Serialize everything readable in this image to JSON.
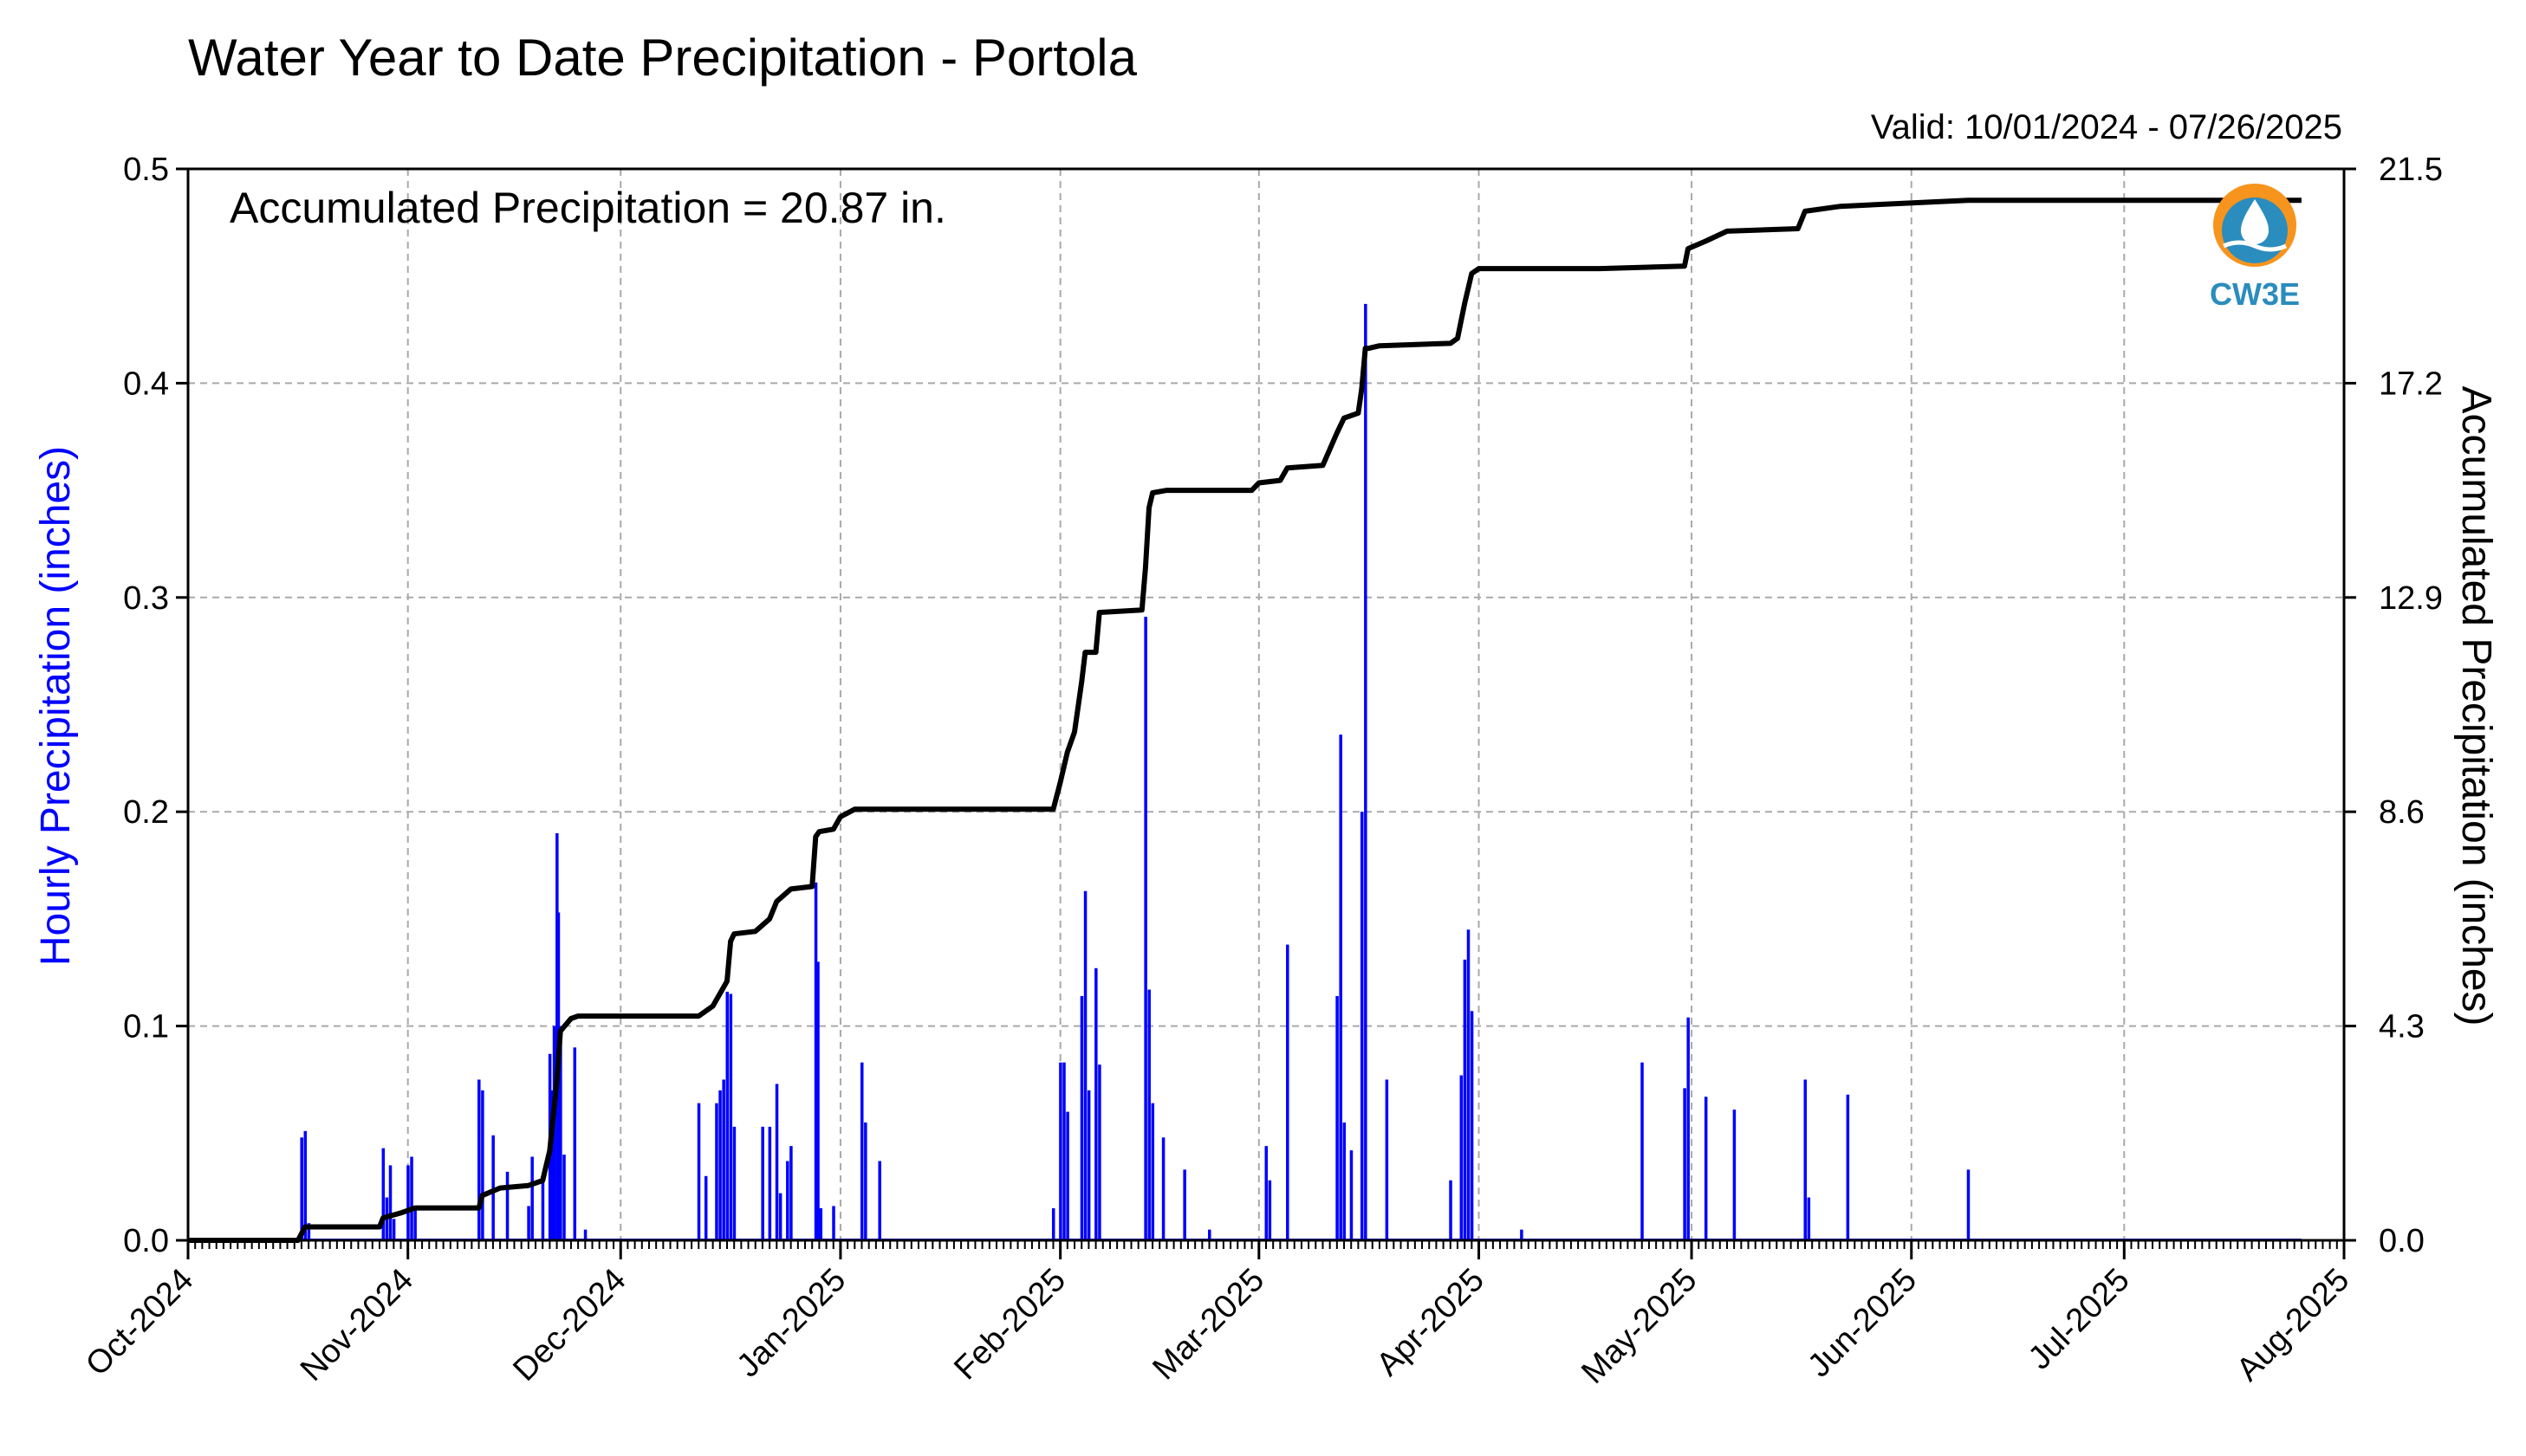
{
  "title": "Water Year to Date Precipitation - Portola",
  "valid_text": "Valid: 10/01/2024 - 07/26/2025",
  "annotation": "Accumulated Precipitation = 20.87 in.",
  "logo_text": "CW3E",
  "colors": {
    "hourly": "#0000ff",
    "accumulated": "#000000",
    "grid": "#a9a9a9",
    "logo_orange": "#f7941d",
    "logo_blue": "#2b8cbe"
  },
  "chart_data": {
    "type": "bar",
    "title": "Water Year to Date Precipitation - Portola",
    "ylabel": "Hourly Precipitation (inches)",
    "y2label": "Accumulated Precipitation (inches)",
    "ylim": [
      0,
      0.5
    ],
    "y2lim": [
      0,
      21.5
    ],
    "yticks": [
      "0.0",
      "0.1",
      "0.2",
      "0.3",
      "0.4",
      "0.5"
    ],
    "y2ticks": [
      "0.0",
      "4.3",
      "8.6",
      "12.9",
      "17.2",
      "21.5"
    ],
    "xlim": [
      "2024-10-01",
      "2025-08-01"
    ],
    "xticks": [
      "Oct-2024",
      "Nov-2024",
      "Dec-2024",
      "Jan-2025",
      "Feb-2025",
      "Mar-2025",
      "Apr-2025",
      "May-2025",
      "Jun-2025",
      "Jul-2025",
      "Aug-2025"
    ],
    "grid": true,
    "series": [
      {
        "name": "Hourly Precipitation (inches)",
        "type": "bar",
        "points": [
          [
            "2024-10-17",
            0.048
          ],
          [
            "2024-10-17.5",
            0.051
          ],
          [
            "2024-10-18",
            0.008
          ],
          [
            "2024-10-28.5",
            0.043
          ],
          [
            "2024-10-29",
            0.02
          ],
          [
            "2024-10-29.5",
            0.035
          ],
          [
            "2024-10-30",
            0.01
          ],
          [
            "2024-11-01",
            0.035
          ],
          [
            "2024-11-01.5",
            0.039
          ],
          [
            "2024-11-02",
            0.015
          ],
          [
            "2024-11-11",
            0.075
          ],
          [
            "2024-11-11.5",
            0.07
          ],
          [
            "2024-11-13",
            0.049
          ],
          [
            "2024-11-15",
            0.032
          ],
          [
            "2024-11-18",
            0.016
          ],
          [
            "2024-11-18.5",
            0.039
          ],
          [
            "2024-11-20",
            0.03
          ],
          [
            "2024-11-21",
            0.087
          ],
          [
            "2024-11-21.3",
            0.07
          ],
          [
            "2024-11-21.6",
            0.1
          ],
          [
            "2024-11-22",
            0.19
          ],
          [
            "2024-11-22.2",
            0.153
          ],
          [
            "2024-11-22.5",
            0.1
          ],
          [
            "2024-11-23",
            0.04
          ],
          [
            "2024-11-24.5",
            0.09
          ],
          [
            "2024-11-26",
            0.005
          ],
          [
            "2024-12-12",
            0.064
          ],
          [
            "2024-12-13",
            0.03
          ],
          [
            "2024-12-14.5",
            0.064
          ],
          [
            "2024-12-15",
            0.07
          ],
          [
            "2024-12-15.5",
            0.075
          ],
          [
            "2024-12-16",
            0.116
          ],
          [
            "2024-12-16.5",
            0.115
          ],
          [
            "2024-12-17",
            0.053
          ],
          [
            "2024-12-21",
            0.053
          ],
          [
            "2024-12-22",
            0.053
          ],
          [
            "2024-12-23",
            0.073
          ],
          [
            "2024-12-23.5",
            0.022
          ],
          [
            "2024-12-24.5",
            0.037
          ],
          [
            "2024-12-25",
            0.044
          ],
          [
            "2024-12-28.5",
            0.167
          ],
          [
            "2024-12-28.8",
            0.13
          ],
          [
            "2024-12-29.2",
            0.015
          ],
          [
            "2024-12-31",
            0.016
          ],
          [
            "2025-01-04",
            0.083
          ],
          [
            "2025-01-04.5",
            0.055
          ],
          [
            "2025-01-06.5",
            0.037
          ],
          [
            "2025-01-31",
            0.015
          ],
          [
            "2025-02-01",
            0.083
          ],
          [
            "2025-02-01.5",
            0.083
          ],
          [
            "2025-02-02",
            0.06
          ],
          [
            "2025-02-04",
            0.114
          ],
          [
            "2025-02-04.5",
            0.163
          ],
          [
            "2025-02-05",
            0.07
          ],
          [
            "2025-02-06",
            0.127
          ],
          [
            "2025-02-06.5",
            0.082
          ],
          [
            "2025-02-13",
            0.291
          ],
          [
            "2025-02-13.5",
            0.117
          ],
          [
            "2025-02-14",
            0.064
          ],
          [
            "2025-02-15.5",
            0.048
          ],
          [
            "2025-02-18.5",
            0.033
          ],
          [
            "2025-02-22",
            0.005
          ],
          [
            "2025-03-02",
            0.044
          ],
          [
            "2025-03-02.5",
            0.028
          ],
          [
            "2025-03-05",
            0.138
          ],
          [
            "2025-03-12",
            0.114
          ],
          [
            "2025-03-12.5",
            0.236
          ],
          [
            "2025-03-13",
            0.055
          ],
          [
            "2025-03-14",
            0.042
          ],
          [
            "2025-03-15.5",
            0.2
          ],
          [
            "2025-03-16",
            0.437
          ],
          [
            "2025-03-19",
            0.075
          ],
          [
            "2025-03-28",
            0.028
          ],
          [
            "2025-03-29.5",
            0.077
          ],
          [
            "2025-03-30",
            0.131
          ],
          [
            "2025-03-30.5",
            0.145
          ],
          [
            "2025-03-31",
            0.107
          ],
          [
            "2025-04-07",
            0.005
          ],
          [
            "2025-04-24",
            0.083
          ],
          [
            "2025-04-30",
            0.071
          ],
          [
            "2025-04-30.5",
            0.104
          ],
          [
            "2025-05-03",
            0.067
          ],
          [
            "2025-05-07",
            0.061
          ],
          [
            "2025-05-17",
            0.075
          ],
          [
            "2025-05-17.5",
            0.02
          ],
          [
            "2025-05-23",
            0.068
          ],
          [
            "2025-06-09",
            0.033
          ]
        ]
      },
      {
        "name": "Accumulated Precipitation (inches)",
        "type": "line",
        "points": [
          [
            "2024-10-01",
            0.0
          ],
          [
            "2024-10-16.5",
            0.0
          ],
          [
            "2024-10-17.5",
            0.27
          ],
          [
            "2024-10-28",
            0.27
          ],
          [
            "2024-10-28.5",
            0.45
          ],
          [
            "2024-10-31",
            0.55
          ],
          [
            "2024-11-02",
            0.65
          ],
          [
            "2024-11-11",
            0.65
          ],
          [
            "2024-11-11.5",
            0.9
          ],
          [
            "2024-11-14",
            1.05
          ],
          [
            "2024-11-18",
            1.1
          ],
          [
            "2024-11-20",
            1.2
          ],
          [
            "2024-11-21",
            1.8
          ],
          [
            "2024-11-22",
            3.2
          ],
          [
            "2024-11-22.5",
            4.2
          ],
          [
            "2024-11-24",
            4.45
          ],
          [
            "2024-11-25",
            4.5
          ],
          [
            "2024-12-12",
            4.5
          ],
          [
            "2024-12-14",
            4.7
          ],
          [
            "2024-12-16",
            5.2
          ],
          [
            "2024-12-16.5",
            6.0
          ],
          [
            "2024-12-17",
            6.15
          ],
          [
            "2024-12-20",
            6.2
          ],
          [
            "2024-12-22",
            6.45
          ],
          [
            "2024-12-23",
            6.8
          ],
          [
            "2024-12-25",
            7.05
          ],
          [
            "2024-12-28",
            7.1
          ],
          [
            "2024-12-28.5",
            8.1
          ],
          [
            "2024-12-29",
            8.2
          ],
          [
            "2024-12-31",
            8.25
          ],
          [
            "2025-01-01",
            8.5
          ],
          [
            "2025-01-03",
            8.65
          ],
          [
            "2025-01-31",
            8.65
          ],
          [
            "2025-02-01",
            9.2
          ],
          [
            "2025-02-02",
            9.8
          ],
          [
            "2025-02-03",
            10.2
          ],
          [
            "2025-02-04",
            11.2
          ],
          [
            "2025-02-04.5",
            11.8
          ],
          [
            "2025-02-06",
            11.8
          ],
          [
            "2025-02-06.5",
            12.6
          ],
          [
            "2025-02-12.5",
            12.65
          ],
          [
            "2025-02-13",
            13.5
          ],
          [
            "2025-02-13.5",
            14.7
          ],
          [
            "2025-02-14",
            15.0
          ],
          [
            "2025-02-16",
            15.05
          ],
          [
            "2025-02-28",
            15.05
          ],
          [
            "2025-03-01",
            15.2
          ],
          [
            "2025-03-04",
            15.25
          ],
          [
            "2025-03-05",
            15.5
          ],
          [
            "2025-03-10",
            15.55
          ],
          [
            "2025-03-12",
            16.2
          ],
          [
            "2025-03-13",
            16.5
          ],
          [
            "2025-03-15",
            16.6
          ],
          [
            "2025-03-15.5",
            17.1
          ],
          [
            "2025-03-16",
            17.9
          ],
          [
            "2025-03-16.5",
            17.9
          ],
          [
            "2025-03-18",
            17.95
          ],
          [
            "2025-03-28",
            18.0
          ],
          [
            "2025-03-29",
            18.1
          ],
          [
            "2025-03-30",
            18.8
          ],
          [
            "2025-03-31",
            19.4
          ],
          [
            "2025-04-01",
            19.5
          ],
          [
            "2025-04-18",
            19.5
          ],
          [
            "2025-04-30",
            19.55
          ],
          [
            "2025-04-30.5",
            19.9
          ],
          [
            "2025-05-03",
            20.05
          ],
          [
            "2025-05-06",
            20.25
          ],
          [
            "2025-05-16",
            20.3
          ],
          [
            "2025-05-17",
            20.65
          ],
          [
            "2025-05-22",
            20.75
          ],
          [
            "2025-06-09",
            20.87
          ],
          [
            "2025-07-26",
            20.87
          ]
        ]
      }
    ]
  }
}
